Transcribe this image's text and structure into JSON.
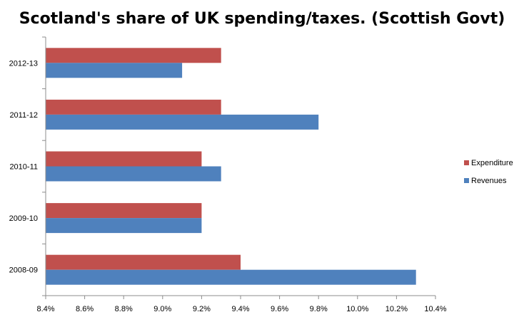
{
  "chart_data": {
    "type": "bar",
    "orientation": "horizontal",
    "title": "Scotland's share of UK spending/taxes. (Scottish Govt)",
    "xlabel": "",
    "ylabel": "",
    "categories": [
      "2008-09",
      "2009-10",
      "2010-11",
      "2011-12",
      "2012-13"
    ],
    "series": [
      {
        "name": "Expenditure",
        "color": "#c0504d",
        "values": [
          9.4,
          9.2,
          9.2,
          9.3,
          9.3
        ]
      },
      {
        "name": "Revenues",
        "color": "#4f81bd",
        "values": [
          10.3,
          9.2,
          9.3,
          9.8,
          9.1
        ]
      }
    ],
    "xlim": [
      8.4,
      10.4
    ],
    "x_ticks": [
      "8.4%",
      "8.6%",
      "8.8%",
      "9.0%",
      "9.2%",
      "9.4%",
      "9.6%",
      "9.8%",
      "10.0%",
      "10.2%",
      "10.4%"
    ],
    "x_tick_values": [
      8.4,
      8.6,
      8.8,
      9.0,
      9.2,
      9.4,
      9.6,
      9.8,
      10.0,
      10.2,
      10.4
    ],
    "grid": false,
    "legend_position": "right"
  }
}
